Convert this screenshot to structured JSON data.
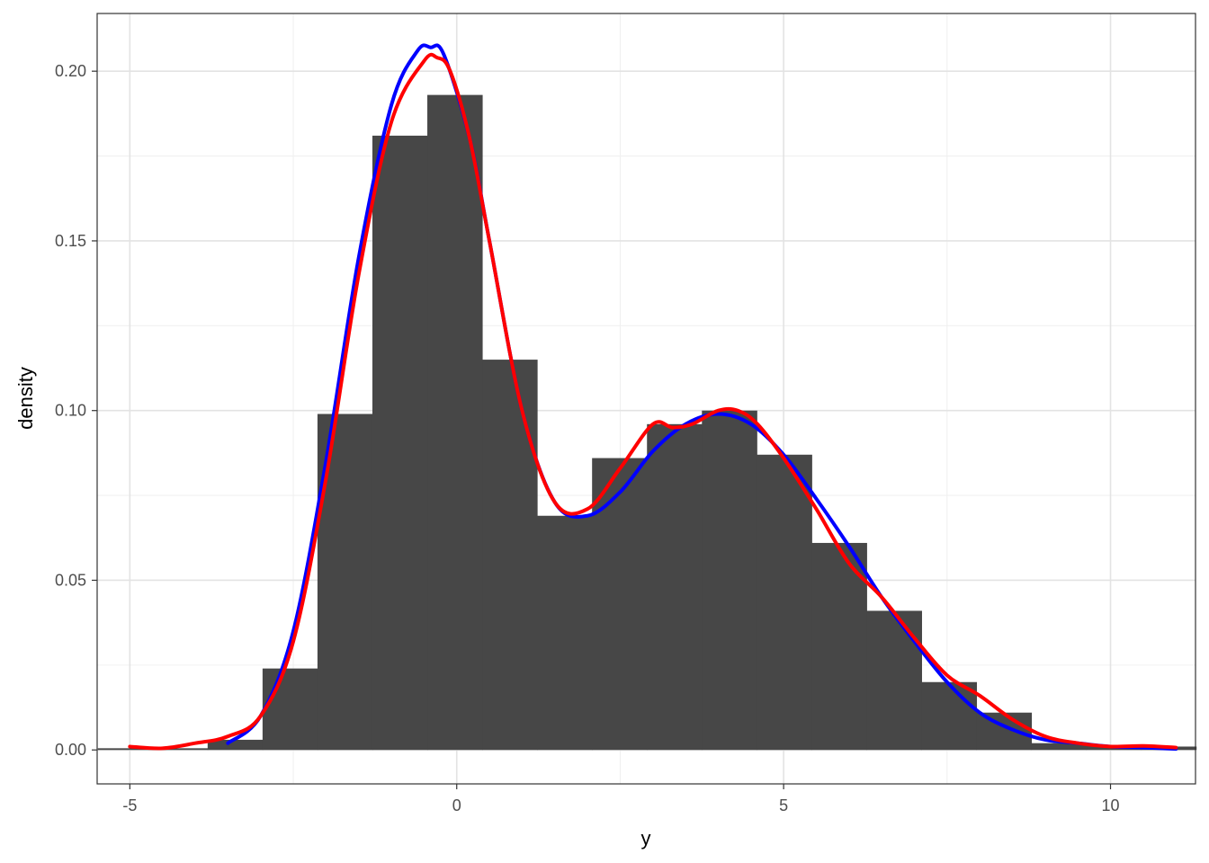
{
  "chart_data": {
    "type": "bar",
    "xlabel": "y",
    "ylabel": "density",
    "xlim": [
      -5.5,
      11.3
    ],
    "ylim": [
      -0.01,
      0.217
    ],
    "x_ticks": [
      -5,
      0,
      5,
      10
    ],
    "x_tick_labels": [
      "-5",
      "0",
      "5",
      "10"
    ],
    "y_ticks": [
      0.0,
      0.05,
      0.1,
      0.15,
      0.2
    ],
    "y_tick_labels": [
      "0.00",
      "0.05",
      "0.10",
      "0.15",
      "0.20"
    ],
    "grid": true,
    "histogram": {
      "bin_edges": [
        -5.49,
        -4.65,
        -3.81,
        -2.97,
        -2.13,
        -1.29,
        -0.45,
        0.39,
        1.23,
        2.07,
        2.91,
        3.75,
        4.59,
        5.43,
        6.27,
        7.11,
        7.95,
        8.79,
        9.63,
        10.47,
        11.31
      ],
      "values": [
        0.0005,
        0.0005,
        0.003,
        0.024,
        0.099,
        0.181,
        0.193,
        0.115,
        0.069,
        0.086,
        0.096,
        0.1,
        0.087,
        0.061,
        0.041,
        0.02,
        0.011,
        0.002,
        0.0015,
        0.001
      ],
      "color": "#474747"
    },
    "series": [
      {
        "color": "#0000ff",
        "x": [
          -3.5,
          -3.0,
          -2.5,
          -2.0,
          -1.5,
          -1.0,
          -0.6,
          -0.4,
          -0.2,
          0.2,
          0.5,
          1.0,
          1.5,
          2.0,
          2.5,
          3.0,
          3.5,
          4.0,
          4.5,
          5.0,
          5.5,
          6.0,
          6.5,
          7.0,
          7.5,
          8.0,
          8.5,
          9.0,
          9.5,
          10.0,
          10.5,
          11.0
        ],
        "y": [
          0.002,
          0.01,
          0.035,
          0.085,
          0.145,
          0.19,
          0.206,
          0.207,
          0.205,
          0.18,
          0.15,
          0.1,
          0.073,
          0.069,
          0.076,
          0.088,
          0.096,
          0.099,
          0.096,
          0.087,
          0.074,
          0.06,
          0.045,
          0.032,
          0.02,
          0.011,
          0.006,
          0.003,
          0.002,
          0.001,
          0.0007,
          0.0003
        ]
      },
      {
        "color": "#ff0000",
        "x": [
          -5.0,
          -4.5,
          -4.0,
          -3.5,
          -3.0,
          -2.5,
          -2.0,
          -1.5,
          -1.0,
          -0.5,
          -0.3,
          -0.1,
          0.2,
          0.5,
          1.0,
          1.5,
          2.0,
          2.5,
          3.0,
          3.3,
          3.6,
          4.0,
          4.3,
          4.6,
          5.0,
          5.5,
          6.0,
          6.5,
          7.0,
          7.5,
          8.0,
          8.5,
          9.0,
          9.5,
          10.0,
          10.5,
          11.0
        ],
        "y": [
          0.001,
          0.0005,
          0.002,
          0.004,
          0.01,
          0.032,
          0.08,
          0.14,
          0.185,
          0.203,
          0.204,
          0.2,
          0.18,
          0.15,
          0.1,
          0.073,
          0.071,
          0.083,
          0.096,
          0.095,
          0.096,
          0.1,
          0.1,
          0.096,
          0.086,
          0.071,
          0.055,
          0.045,
          0.033,
          0.022,
          0.016,
          0.009,
          0.004,
          0.002,
          0.001,
          0.0012,
          0.0007
        ]
      }
    ]
  }
}
